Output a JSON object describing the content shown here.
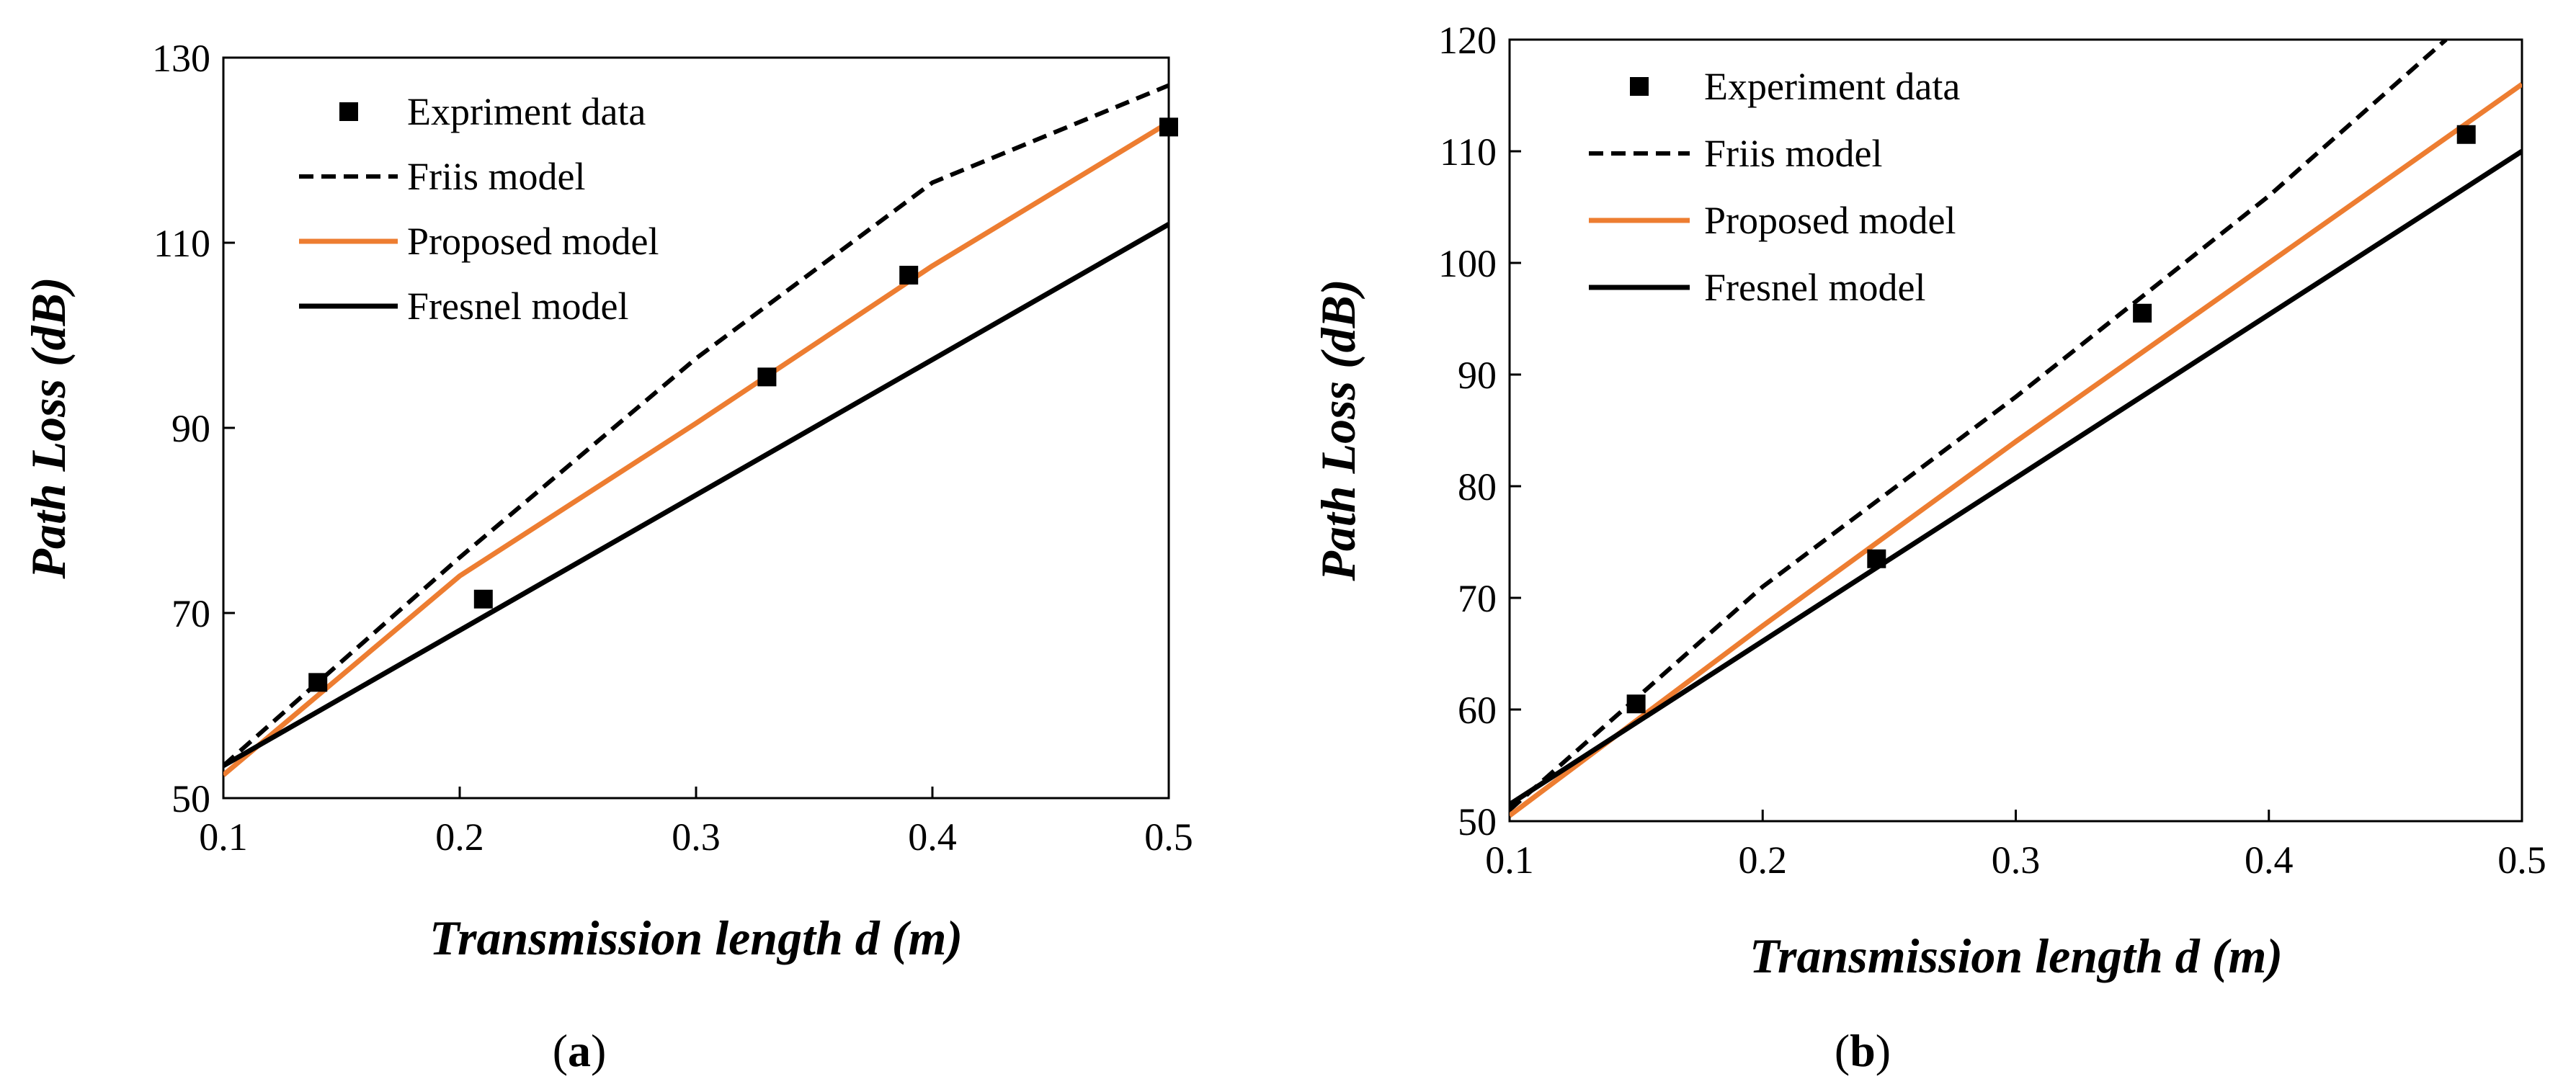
{
  "chart_data": [
    {
      "type": "line",
      "caption": "a",
      "xlabel": "Transmission length d (m)",
      "ylabel": "Path Loss (dB)",
      "xlim": [
        0.1,
        0.5
      ],
      "ylim": [
        50,
        130
      ],
      "xticks": [
        "0.1",
        "0.2",
        "0.3",
        "0.4",
        "0.5"
      ],
      "yticks": [
        "50",
        "70",
        "90",
        "110",
        "130"
      ],
      "legend_location": "top-left",
      "series": [
        {
          "name": "Expriment data",
          "style": "markers",
          "color": "#000000",
          "x": [
            0.14,
            0.21,
            0.33,
            0.39,
            0.5
          ],
          "y": [
            62.5,
            71.5,
            95.5,
            106.5,
            122.5
          ]
        },
        {
          "name": "Friis model",
          "style": "dashed",
          "color": "#000000",
          "x": [
            0.1,
            0.2,
            0.3,
            0.4,
            0.5
          ],
          "y": [
            53.5,
            76,
            97.5,
            116.5,
            127
          ]
        },
        {
          "name": "Proposed model",
          "style": "solid",
          "color": "#ED7D31",
          "x": [
            0.1,
            0.2,
            0.3,
            0.4,
            0.5
          ],
          "y": [
            52.5,
            74,
            90.5,
            107.5,
            123
          ]
        },
        {
          "name": "Fresnel model",
          "style": "solid",
          "color": "#000000",
          "x": [
            0.1,
            0.5
          ],
          "y": [
            53.5,
            112
          ]
        }
      ]
    },
    {
      "type": "line",
      "caption": "b",
      "xlabel": "Transmission length d (m)",
      "ylabel": "Path Loss (dB)",
      "xlim": [
        0.1,
        0.5
      ],
      "ylim": [
        50,
        120
      ],
      "xticks": [
        "0.1",
        "0.2",
        "0.3",
        "0.4",
        "0.5"
      ],
      "yticks": [
        "50",
        "60",
        "70",
        "80",
        "90",
        "100",
        "110",
        "120"
      ],
      "legend_location": "top-left",
      "series": [
        {
          "name": "Experiment data",
          "style": "markers",
          "color": "#000000",
          "x": [
            0.15,
            0.245,
            0.35,
            0.478
          ],
          "y": [
            60.5,
            73.5,
            95.5,
            111.5
          ]
        },
        {
          "name": "Friis model",
          "style": "dashed",
          "color": "#000000",
          "x": [
            0.1,
            0.2,
            0.3,
            0.4,
            0.47
          ],
          "y": [
            51,
            71,
            88,
            106,
            120
          ]
        },
        {
          "name": "Proposed model",
          "style": "solid",
          "color": "#ED7D31",
          "x": [
            0.1,
            0.2,
            0.3,
            0.4,
            0.5
          ],
          "y": [
            50.5,
            67.5,
            84,
            100,
            116
          ]
        },
        {
          "name": "Fresnel model",
          "style": "solid",
          "color": "#000000",
          "x": [
            0.1,
            0.5
          ],
          "y": [
            51.5,
            110
          ]
        }
      ]
    }
  ]
}
